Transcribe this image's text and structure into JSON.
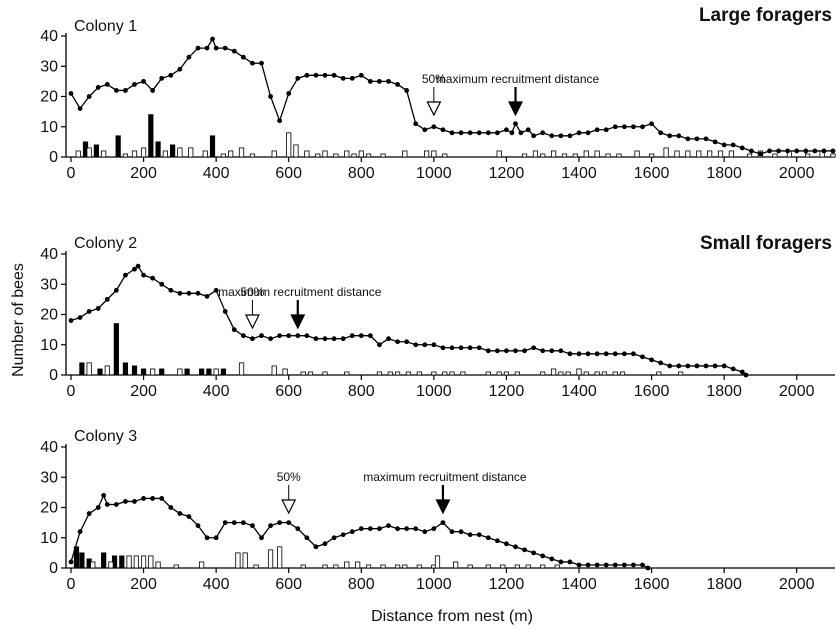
{
  "figure": {
    "ylabel": "Number of bees",
    "xlabel": "Distance from nest (m)"
  },
  "chart_data": [
    {
      "type": "line",
      "title": "Colony 1",
      "forager_label": "Large foragers",
      "xlim": [
        0,
        2100
      ],
      "ylim": [
        0,
        40
      ],
      "x_ticks": [
        0,
        200,
        400,
        600,
        800,
        1000,
        1200,
        1400,
        1600,
        1800,
        2000
      ],
      "y_ticks": [
        0,
        10,
        20,
        30,
        40
      ],
      "annotations": [
        {
          "label": "50%",
          "x": 1000,
          "style": "open"
        },
        {
          "label": "maximum recruitment distance",
          "x": 1225,
          "style": "filled"
        }
      ],
      "series": [
        {
          "kind": "line",
          "x": [
            0,
            25,
            50,
            75,
            100,
            125,
            150,
            175,
            200,
            225,
            250,
            275,
            300,
            325,
            350,
            375,
            390,
            400,
            425,
            450,
            475,
            500,
            525,
            550,
            575,
            600,
            625,
            650,
            675,
            700,
            725,
            750,
            775,
            800,
            825,
            850,
            875,
            900,
            925,
            950,
            975,
            1000,
            1025,
            1050,
            1075,
            1100,
            1125,
            1150,
            1175,
            1200,
            1215,
            1225,
            1240,
            1260,
            1275,
            1300,
            1325,
            1350,
            1375,
            1400,
            1425,
            1450,
            1475,
            1500,
            1525,
            1550,
            1575,
            1600,
            1625,
            1650,
            1675,
            1700,
            1725,
            1750,
            1775,
            1800,
            1825,
            1850,
            1875,
            1900,
            1925,
            1950,
            1975,
            2000,
            2025,
            2050,
            2075,
            2100
          ],
          "values": [
            21,
            16,
            20,
            23,
            24,
            22,
            22,
            24,
            25,
            22,
            26,
            27,
            29,
            33,
            36,
            36,
            39,
            36,
            36,
            35,
            33,
            31,
            31,
            20,
            12,
            21,
            26,
            27,
            27,
            27,
            27,
            26,
            26,
            27,
            25,
            25,
            25,
            24,
            22,
            11,
            9,
            10,
            9,
            8,
            8,
            8,
            8,
            8,
            8,
            9,
            8,
            11,
            8,
            9,
            7,
            8,
            7,
            7,
            7,
            8,
            8,
            9,
            9,
            10,
            10,
            10,
            10,
            11,
            8,
            7,
            7,
            6,
            6,
            6,
            5,
            4,
            4,
            3,
            2,
            1,
            2,
            2,
            2,
            2,
            2,
            2,
            2,
            2
          ]
        },
        {
          "kind": "bar_filled",
          "x": [
            40,
            70,
            130,
            220,
            240,
            280,
            390
          ],
          "values": [
            5,
            4,
            7,
            14,
            5,
            4,
            7
          ]
        },
        {
          "kind": "bar_open",
          "x": [
            20,
            50,
            90,
            150,
            175,
            200,
            260,
            300,
            330,
            370,
            420,
            440,
            470,
            500,
            560,
            600,
            620,
            650,
            680,
            700,
            730,
            760,
            780,
            800,
            820,
            860,
            920,
            980,
            1000,
            1030,
            1180,
            1250,
            1280,
            1300,
            1330,
            1360,
            1390,
            1420,
            1450,
            1480,
            1510,
            1560,
            1600,
            1640,
            1670,
            1700,
            1730,
            1760,
            1790,
            1820,
            1870,
            1900,
            1940,
            1980,
            2030,
            2070,
            2100
          ],
          "values": [
            2,
            3,
            2,
            1,
            2,
            3,
            2,
            3,
            3,
            2,
            1,
            2,
            3,
            1,
            2,
            8,
            4,
            2,
            1,
            2,
            1,
            2,
            1,
            2,
            1,
            1,
            2,
            2,
            2,
            1,
            2,
            1,
            2,
            1,
            2,
            1,
            1,
            2,
            2,
            1,
            1,
            2,
            1,
            3,
            2,
            2,
            2,
            2,
            2,
            2,
            1,
            2,
            1,
            2,
            1,
            2,
            1
          ]
        }
      ]
    },
    {
      "type": "line",
      "title": "Colony 2",
      "forager_label": "Small foragers",
      "xlim": [
        0,
        2100
      ],
      "ylim": [
        0,
        40
      ],
      "x_ticks": [
        0,
        200,
        400,
        600,
        800,
        1000,
        1200,
        1400,
        1600,
        1800,
        2000
      ],
      "y_ticks": [
        0,
        10,
        20,
        30,
        40
      ],
      "annotations": [
        {
          "label": "50%",
          "x": 500,
          "style": "open"
        },
        {
          "label": "maximum recruitment distance",
          "x": 625,
          "style": "filled"
        }
      ],
      "series": [
        {
          "kind": "line",
          "x": [
            0,
            25,
            50,
            75,
            100,
            125,
            150,
            175,
            185,
            200,
            225,
            250,
            275,
            300,
            325,
            350,
            375,
            400,
            425,
            450,
            475,
            500,
            525,
            550,
            575,
            600,
            625,
            650,
            675,
            700,
            725,
            750,
            775,
            800,
            825,
            850,
            875,
            900,
            925,
            950,
            975,
            1000,
            1025,
            1050,
            1075,
            1100,
            1125,
            1150,
            1175,
            1200,
            1225,
            1250,
            1275,
            1300,
            1325,
            1350,
            1375,
            1400,
            1425,
            1450,
            1475,
            1500,
            1525,
            1550,
            1575,
            1600,
            1625,
            1650,
            1675,
            1700,
            1725,
            1750,
            1775,
            1800,
            1825,
            1850,
            1860
          ],
          "values": [
            18,
            19,
            21,
            22,
            25,
            28,
            33,
            35,
            36,
            33,
            32,
            30,
            28,
            27,
            27,
            27,
            26,
            28,
            21,
            15,
            13,
            12,
            13,
            12,
            13,
            13,
            13,
            13,
            12,
            12,
            12,
            12,
            13,
            13,
            13,
            10,
            12,
            11,
            11,
            10,
            10,
            10,
            9,
            9,
            9,
            9,
            9,
            8,
            8,
            8,
            8,
            8,
            9,
            8,
            8,
            8,
            7,
            7,
            7,
            7,
            7,
            7,
            7,
            7,
            6,
            5,
            4,
            3,
            3,
            3,
            3,
            3,
            3,
            3,
            2,
            1,
            0
          ]
        },
        {
          "kind": "bar_filled",
          "x": [
            30,
            80,
            125,
            150,
            175,
            200,
            250,
            320,
            360,
            380,
            420
          ],
          "values": [
            4,
            2,
            17,
            4,
            3,
            2,
            2,
            2,
            2,
            2,
            2
          ]
        },
        {
          "kind": "bar_open",
          "x": [
            50,
            100,
            225,
            300,
            400,
            470,
            560,
            590,
            640,
            660,
            700,
            760,
            850,
            880,
            900,
            930,
            960,
            1000,
            1030,
            1050,
            1080,
            1150,
            1180,
            1200,
            1230,
            1300,
            1330,
            1350,
            1370,
            1400,
            1420,
            1450,
            1470,
            1500,
            1520,
            1620,
            1680
          ],
          "values": [
            4,
            3,
            2,
            2,
            2,
            4,
            3,
            2,
            1,
            1,
            1,
            1,
            1,
            1,
            1,
            1,
            1,
            1,
            1,
            1,
            1,
            1,
            1,
            1,
            1,
            1,
            2,
            1,
            1,
            2,
            1,
            1,
            1,
            1,
            1,
            1,
            1
          ]
        }
      ]
    },
    {
      "type": "line",
      "title": "Colony 3",
      "forager_label": "",
      "xlim": [
        0,
        2100
      ],
      "ylim": [
        0,
        40
      ],
      "x_ticks": [
        0,
        200,
        400,
        600,
        800,
        1000,
        1200,
        1400,
        1600,
        1800,
        2000
      ],
      "y_ticks": [
        0,
        10,
        20,
        30,
        40
      ],
      "annotations": [
        {
          "label": "50%",
          "x": 600,
          "style": "open"
        },
        {
          "label": "maximum recruitment distance",
          "x": 1025,
          "style": "filled"
        }
      ],
      "series": [
        {
          "kind": "line",
          "x": [
            0,
            25,
            50,
            75,
            90,
            100,
            125,
            150,
            175,
            200,
            225,
            250,
            275,
            300,
            325,
            350,
            375,
            400,
            425,
            450,
            475,
            500,
            525,
            550,
            575,
            600,
            625,
            650,
            675,
            700,
            725,
            750,
            775,
            800,
            825,
            850,
            875,
            900,
            925,
            950,
            975,
            1000,
            1025,
            1050,
            1075,
            1100,
            1125,
            1150,
            1175,
            1200,
            1225,
            1250,
            1275,
            1300,
            1325,
            1350,
            1375,
            1400,
            1425,
            1450,
            1475,
            1500,
            1525,
            1550,
            1575,
            1590
          ],
          "values": [
            2,
            12,
            18,
            20,
            24,
            21,
            21,
            22,
            22,
            23,
            23,
            23,
            20,
            18,
            17,
            14,
            10,
            10,
            15,
            15,
            15,
            14,
            10,
            14,
            15,
            15,
            13,
            10,
            7,
            8,
            10,
            11,
            12,
            13,
            13,
            13,
            14,
            13,
            13,
            13,
            12,
            13,
            15,
            12,
            12,
            11,
            11,
            10,
            9,
            8,
            7,
            6,
            5,
            4,
            3,
            2,
            2,
            1,
            1,
            1,
            1,
            1,
            1,
            1,
            1,
            0
          ]
        },
        {
          "kind": "bar_filled",
          "x": [
            15,
            30,
            50,
            90,
            120,
            140
          ],
          "values": [
            7,
            5,
            3,
            5,
            4,
            4
          ]
        },
        {
          "kind": "bar_open",
          "x": [
            60,
            110,
            160,
            180,
            200,
            220,
            240,
            290,
            360,
            460,
            480,
            510,
            550,
            575,
            640,
            700,
            730,
            760,
            790,
            820,
            860,
            900,
            920,
            960,
            1000,
            1010,
            1060,
            1100,
            1150,
            1190,
            1230,
            1260,
            1300,
            1340
          ],
          "values": [
            2,
            2,
            4,
            4,
            4,
            4,
            2,
            1,
            2,
            5,
            5,
            1,
            6,
            7,
            1,
            1,
            1,
            2,
            2,
            1,
            1,
            1,
            1,
            1,
            1,
            4,
            2,
            1,
            1,
            1,
            1,
            1,
            1,
            1
          ]
        }
      ]
    }
  ]
}
